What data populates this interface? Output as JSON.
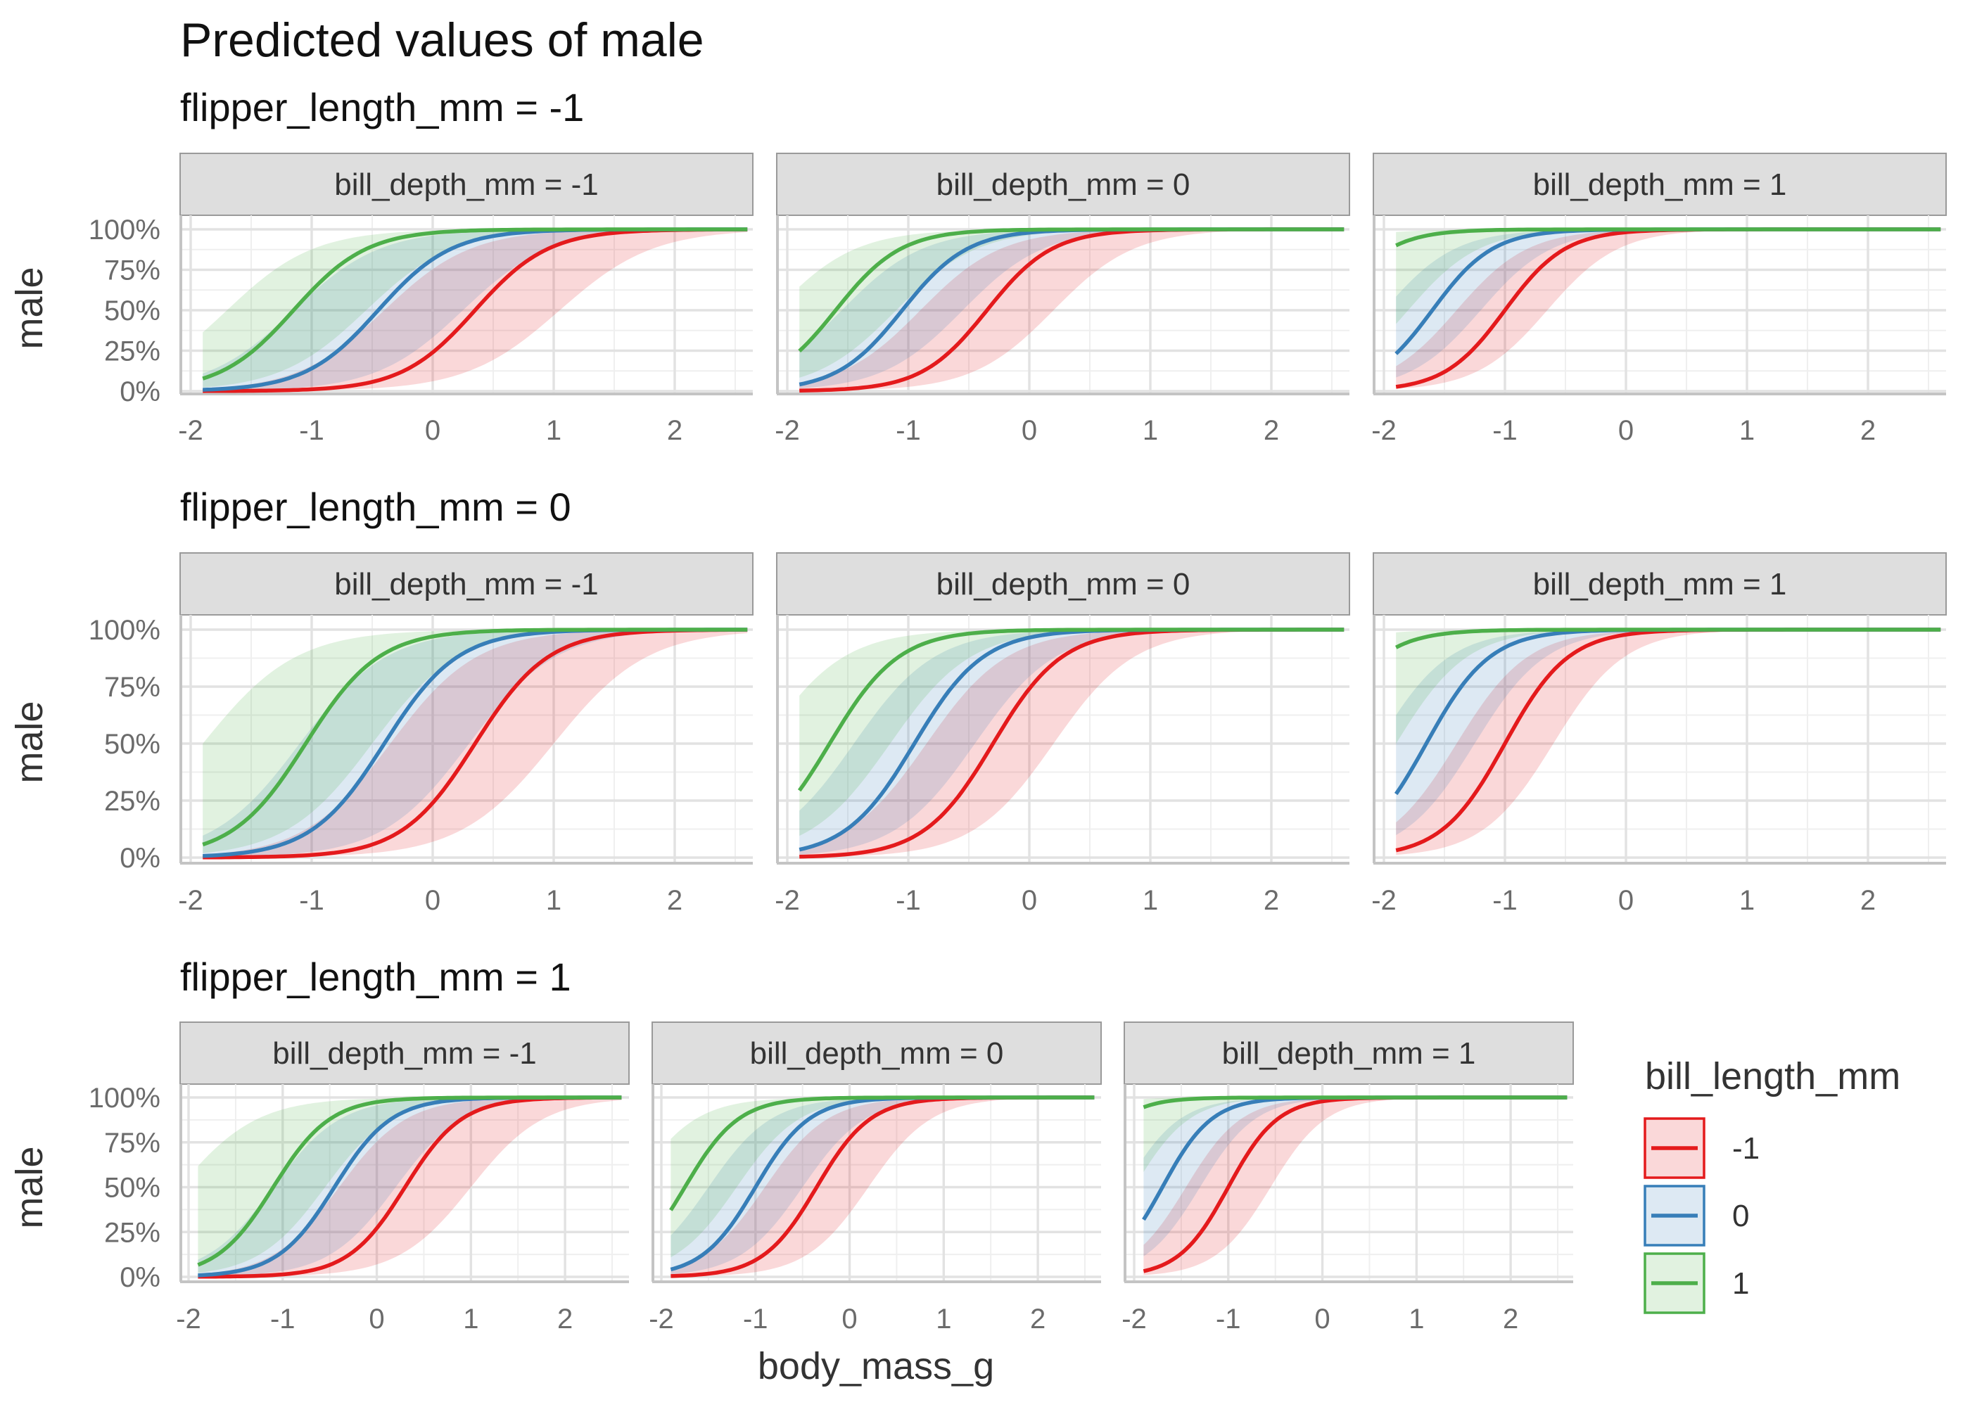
{
  "chart_data": {
    "type": "line",
    "title": "Predicted values of male",
    "xlabel": "body_mass_g",
    "ylabel": "male",
    "xlim": [
      -2,
      2.5
    ],
    "ylim": [
      0,
      1
    ],
    "x_ticks": [
      "-2",
      "-1",
      "0",
      "1",
      "2"
    ],
    "y_ticks": [
      "0%",
      "25%",
      "50%",
      "75%",
      "100%"
    ],
    "x_domain": [
      -1.9,
      2.6
    ],
    "legend": {
      "title": "bill_length_mm",
      "position": "right",
      "entries": [
        {
          "label": "-1",
          "color": "#E41A1C"
        },
        {
          "label": "0",
          "color": "#377EB8"
        },
        {
          "label": "1",
          "color": "#4DAF4A"
        }
      ]
    },
    "colors": {
      "-1": "#E41A1C",
      "0": "#377EB8",
      "1": "#4DAF4A"
    },
    "rows": [
      {
        "title": "flipper_length_mm = -1",
        "panels": [
          {
            "strip": "bill_depth_mm = -1",
            "series": [
              {
                "level": "-1",
                "x50": 0.35,
                "k": 3.3,
                "lo_x50": 1.05,
                "lo_k": 2.6,
                "hi_x50": -0.4,
                "hi_k": 2.8
              },
              {
                "level": "0",
                "x50": -0.45,
                "k": 3.3,
                "lo_x50": 0.25,
                "lo_k": 2.8,
                "hi_x50": -1.15,
                "hi_k": 2.8
              },
              {
                "level": "1",
                "x50": -1.15,
                "k": 3.3,
                "lo_x50": -0.55,
                "lo_k": 2.8,
                "hi_x50": -1.7,
                "hi_k": 2.8
              }
            ]
          },
          {
            "strip": "bill_depth_mm = 0",
            "series": [
              {
                "level": "-1",
                "x50": -0.35,
                "k": 3.7,
                "lo_x50": 0.2,
                "lo_k": 3.0,
                "hi_x50": -0.9,
                "hi_k": 3.0
              },
              {
                "level": "0",
                "x50": -1.05,
                "k": 3.7,
                "lo_x50": -0.55,
                "lo_k": 3.0,
                "hi_x50": -1.55,
                "hi_k": 3.0
              },
              {
                "level": "1",
                "x50": -1.6,
                "k": 3.7,
                "lo_x50": -1.1,
                "lo_k": 3.0,
                "hi_x50": -2.1,
                "hi_k": 3.0
              }
            ]
          },
          {
            "strip": "bill_depth_mm = 1",
            "series": [
              {
                "level": "-1",
                "x50": -1.0,
                "k": 4.0,
                "lo_x50": -0.65,
                "lo_k": 3.4,
                "hi_x50": -1.4,
                "hi_k": 3.4
              },
              {
                "level": "0",
                "x50": -1.6,
                "k": 4.0,
                "lo_x50": -1.2,
                "lo_k": 3.4,
                "hi_x50": -2.0,
                "hi_k": 3.4
              },
              {
                "level": "1",
                "x50": -2.45,
                "k": 4.0,
                "lo_x50": -1.8,
                "lo_k": 3.4,
                "hi_x50": -3.1,
                "hi_k": 3.4
              }
            ]
          }
        ]
      },
      {
        "title": "flipper_length_mm = 0",
        "panels": [
          {
            "strip": "bill_depth_mm = -1",
            "series": [
              {
                "level": "-1",
                "x50": 0.35,
                "k": 3.3,
                "lo_x50": 1.0,
                "lo_k": 2.6,
                "hi_x50": -0.35,
                "hi_k": 2.8
              },
              {
                "level": "0",
                "x50": -0.4,
                "k": 3.3,
                "lo_x50": 0.3,
                "lo_k": 2.8,
                "hi_x50": -1.1,
                "hi_k": 2.8
              },
              {
                "level": "1",
                "x50": -1.05,
                "k": 3.3,
                "lo_x50": -0.5,
                "lo_k": 2.8,
                "hi_x50": -1.9,
                "hi_k": 2.6
              }
            ]
          },
          {
            "strip": "bill_depth_mm = 0",
            "series": [
              {
                "level": "-1",
                "x50": -0.3,
                "k": 3.5,
                "lo_x50": 0.2,
                "lo_k": 3.0,
                "hi_x50": -0.85,
                "hi_k": 3.0
              },
              {
                "level": "0",
                "x50": -0.95,
                "k": 3.5,
                "lo_x50": -0.45,
                "lo_k": 3.0,
                "hi_x50": -1.45,
                "hi_k": 3.0
              },
              {
                "level": "1",
                "x50": -1.65,
                "k": 3.5,
                "lo_x50": -1.15,
                "lo_k": 3.0,
                "hi_x50": -2.2,
                "hi_k": 3.0
              }
            ]
          },
          {
            "strip": "bill_depth_mm = 1",
            "series": [
              {
                "level": "-1",
                "x50": -1.0,
                "k": 3.8,
                "lo_x50": -0.6,
                "lo_k": 3.4,
                "hi_x50": -1.4,
                "hi_k": 3.4
              },
              {
                "level": "0",
                "x50": -1.65,
                "k": 3.8,
                "lo_x50": -1.25,
                "lo_k": 3.4,
                "hi_x50": -2.05,
                "hi_k": 3.4
              },
              {
                "level": "1",
                "x50": -2.55,
                "k": 3.8,
                "lo_x50": -1.9,
                "lo_k": 3.4,
                "hi_x50": -3.2,
                "hi_k": 3.4
              }
            ]
          }
        ]
      },
      {
        "title": "flipper_length_mm = 1",
        "panels": [
          {
            "strip": "bill_depth_mm = -1",
            "series": [
              {
                "level": "-1",
                "x50": 0.3,
                "k": 3.3,
                "lo_x50": 1.0,
                "lo_k": 2.6,
                "hi_x50": -0.4,
                "hi_k": 2.8
              },
              {
                "level": "0",
                "x50": -0.45,
                "k": 3.3,
                "lo_x50": 0.2,
                "lo_k": 2.8,
                "hi_x50": -1.1,
                "hi_k": 2.8
              },
              {
                "level": "1",
                "x50": -1.1,
                "k": 3.3,
                "lo_x50": -0.55,
                "lo_k": 2.8,
                "hi_x50": -2.1,
                "hi_k": 2.4
              }
            ]
          },
          {
            "strip": "bill_depth_mm = 0",
            "series": [
              {
                "level": "-1",
                "x50": -0.35,
                "k": 3.5,
                "lo_x50": 0.2,
                "lo_k": 3.0,
                "hi_x50": -0.9,
                "hi_k": 3.0
              },
              {
                "level": "0",
                "x50": -1.0,
                "k": 3.5,
                "lo_x50": -0.5,
                "lo_k": 3.0,
                "hi_x50": -1.5,
                "hi_k": 3.0
              },
              {
                "level": "1",
                "x50": -1.75,
                "k": 3.5,
                "lo_x50": -1.2,
                "lo_k": 3.0,
                "hi_x50": -2.3,
                "hi_k": 3.0
              }
            ]
          },
          {
            "strip": "bill_depth_mm = 1",
            "series": [
              {
                "level": "-1",
                "x50": -1.0,
                "k": 3.8,
                "lo_x50": -0.55,
                "lo_k": 3.4,
                "hi_x50": -1.45,
                "hi_k": 3.4
              },
              {
                "level": "0",
                "x50": -1.7,
                "k": 3.8,
                "lo_x50": -1.3,
                "lo_k": 3.4,
                "hi_x50": -2.1,
                "hi_k": 3.4
              },
              {
                "level": "1",
                "x50": -2.65,
                "k": 3.8,
                "lo_x50": -2.0,
                "lo_k": 3.4,
                "hi_x50": -3.3,
                "hi_k": 3.4
              }
            ]
          }
        ]
      }
    ]
  }
}
